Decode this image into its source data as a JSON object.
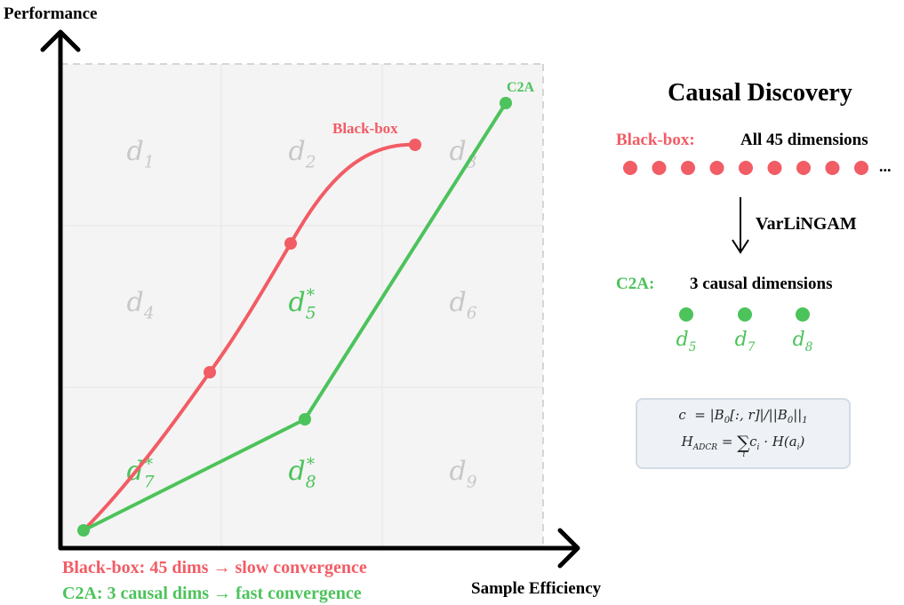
{
  "axes": {
    "y_label": "Performance",
    "x_label": "Sample Efficiency"
  },
  "grid": {
    "cells": [
      {
        "label": "d",
        "sub": "1",
        "star": false,
        "highlight": false
      },
      {
        "label": "d",
        "sub": "2",
        "star": false,
        "highlight": false
      },
      {
        "label": "d",
        "sub": "3",
        "star": false,
        "highlight": false
      },
      {
        "label": "d",
        "sub": "4",
        "star": false,
        "highlight": false
      },
      {
        "label": "d",
        "sub": "5",
        "star": true,
        "highlight": true
      },
      {
        "label": "d",
        "sub": "6",
        "star": false,
        "highlight": false
      },
      {
        "label": "d",
        "sub": "7",
        "star": true,
        "highlight": true
      },
      {
        "label": "d",
        "sub": "8",
        "star": true,
        "highlight": true
      },
      {
        "label": "d",
        "sub": "9",
        "star": false,
        "highlight": false
      }
    ]
  },
  "curves": {
    "blackbox_label": "Black-box",
    "c2a_label": "C2A"
  },
  "legend": {
    "blackbox_text": "Black-box: 45 dims → slow convergence",
    "c2a_text": "C2A: 3 causal dims → fast convergence"
  },
  "panel": {
    "title": "Causal Discovery",
    "blackbox_label": "Black-box:",
    "blackbox_desc": "All 45 dimensions",
    "ellipsis": "...",
    "method": "VarLiNGAM",
    "c2a_label": "C2A:",
    "c2a_desc": "3 causal dimensions",
    "causal_dims": [
      {
        "label": "d",
        "sub": "5"
      },
      {
        "label": "d",
        "sub": "7"
      },
      {
        "label": "d",
        "sub": "8"
      }
    ]
  },
  "colors": {
    "red": "#f25c65",
    "green": "#4cc35b",
    "grid_text": "#c8c8c8",
    "axis": "#000000",
    "cell_bg": "#f4f4f4"
  }
}
